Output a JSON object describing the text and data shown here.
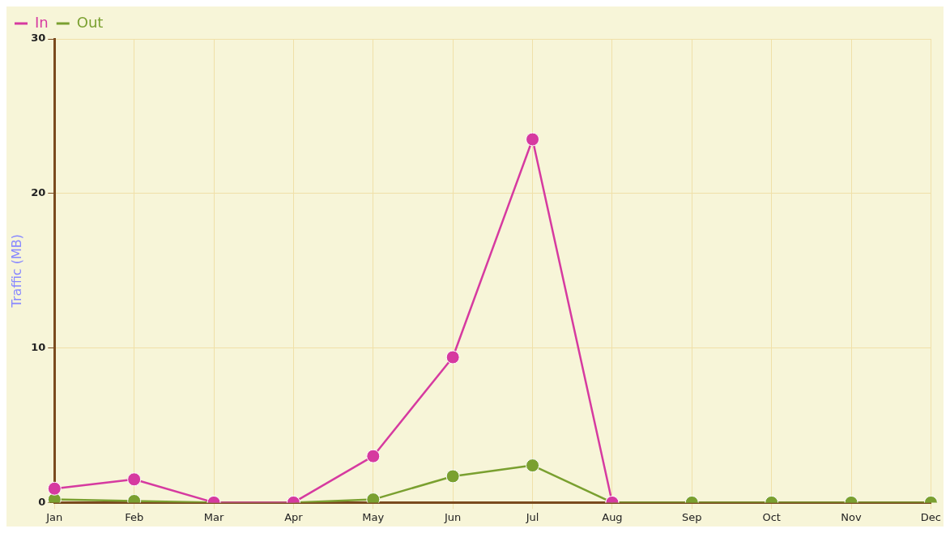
{
  "chart_data": {
    "type": "line",
    "ylabel": "Traffic (MB)",
    "categories": [
      "Jan",
      "Feb",
      "Mar",
      "Apr",
      "May",
      "Jun",
      "Jul",
      "Aug",
      "Sep",
      "Oct",
      "Nov",
      "Dec"
    ],
    "series": [
      {
        "name": "In",
        "color": "#d63aa0",
        "values": [
          0.9,
          1.5,
          0,
          0,
          3.0,
          9.4,
          23.5,
          0,
          null,
          null,
          null,
          null
        ]
      },
      {
        "name": "Out",
        "color": "#7aa030",
        "values": [
          0.2,
          0.1,
          0,
          0,
          0.2,
          1.7,
          2.4,
          0,
          0,
          0,
          0,
          0
        ]
      }
    ],
    "ylim": [
      0,
      30
    ],
    "yticks": [
      0,
      10,
      20,
      30
    ],
    "grid": true,
    "legend": "top left",
    "marker": "circle",
    "line_style": "solid"
  }
}
